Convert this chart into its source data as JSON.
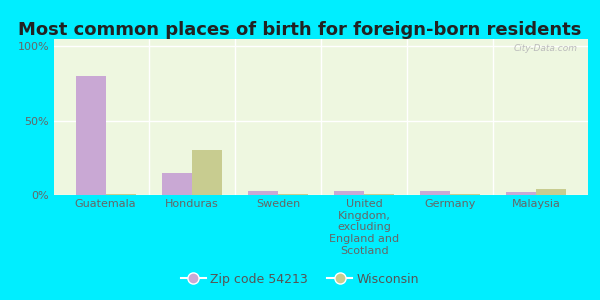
{
  "title": "Most common places of birth for foreign-born residents",
  "categories": [
    "Guatemala",
    "Honduras",
    "Sweden",
    "United\nKingdom,\nexcluding\nEngland and\nScotland",
    "Germany",
    "Malaysia"
  ],
  "zip_values": [
    80.0,
    15.0,
    3.0,
    3.0,
    3.0,
    2.0
  ],
  "wi_values": [
    1.0,
    30.0,
    1.0,
    1.0,
    0.5,
    4.0
  ],
  "zip_color": "#c9a8d4",
  "wi_color": "#c8cc90",
  "outer_bg": "#00eeff",
  "plot_bg": "#eef7e0",
  "yticks": [
    0,
    50,
    100
  ],
  "ylim": [
    0,
    105
  ],
  "bar_width": 0.35,
  "watermark": "City-Data.com",
  "legend_zip": "Zip code 54213",
  "legend_wi": "Wisconsin",
  "title_fontsize": 13,
  "tick_fontsize": 8,
  "legend_fontsize": 9
}
